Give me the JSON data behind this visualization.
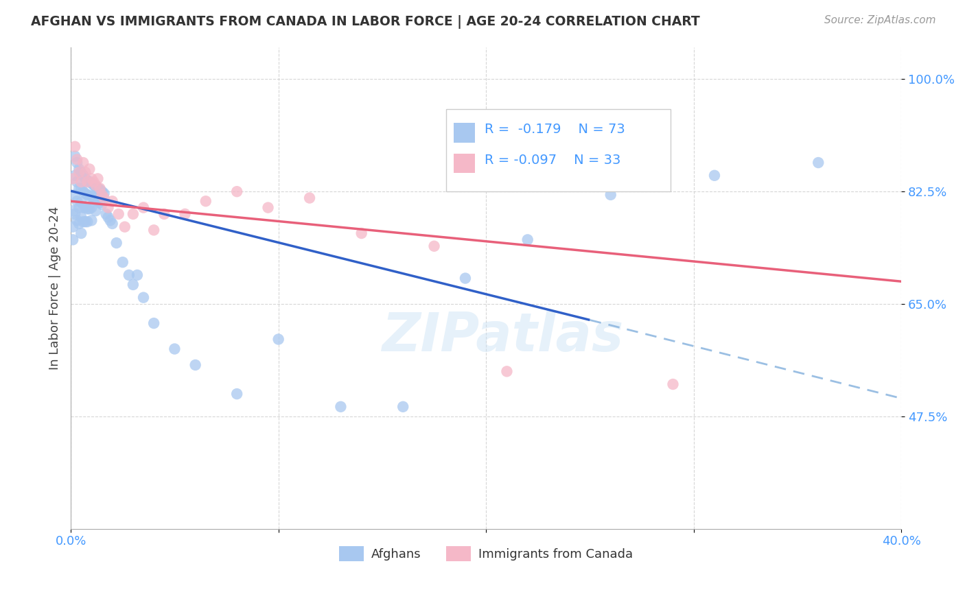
{
  "title": "AFGHAN VS IMMIGRANTS FROM CANADA IN LABOR FORCE | AGE 20-24 CORRELATION CHART",
  "source": "Source: ZipAtlas.com",
  "ylabel": "In Labor Force | Age 20-24",
  "xlim": [
    0.0,
    0.4
  ],
  "ylim": [
    0.3,
    1.05
  ],
  "ytick_positions": [
    0.475,
    0.65,
    0.825,
    1.0
  ],
  "ytick_labels": [
    "47.5%",
    "65.0%",
    "82.5%",
    "100.0%"
  ],
  "blue_color": "#A8C8F0",
  "pink_color": "#F5B8C8",
  "line_blue_solid": "#3060C8",
  "line_blue_dash": "#90B8E0",
  "line_pink": "#E8607A",
  "grid_color": "#CCCCCC",
  "bg_color": "#FFFFFF",
  "blue_line_x0": 0.0,
  "blue_line_y0": 0.826,
  "blue_line_x1_solid": 0.25,
  "blue_line_y1_solid": 0.625,
  "blue_line_x1_dash": 0.4,
  "blue_line_y1_dash": 0.503,
  "pink_line_x0": 0.0,
  "pink_line_y0": 0.81,
  "pink_line_x1": 0.4,
  "pink_line_y1": 0.685,
  "blue_scatter_x": [
    0.001,
    0.001,
    0.001,
    0.002,
    0.002,
    0.002,
    0.002,
    0.003,
    0.003,
    0.003,
    0.003,
    0.004,
    0.004,
    0.004,
    0.004,
    0.005,
    0.005,
    0.005,
    0.005,
    0.005,
    0.006,
    0.006,
    0.006,
    0.006,
    0.007,
    0.007,
    0.007,
    0.007,
    0.008,
    0.008,
    0.008,
    0.008,
    0.009,
    0.009,
    0.009,
    0.01,
    0.01,
    0.01,
    0.01,
    0.011,
    0.011,
    0.012,
    0.012,
    0.012,
    0.013,
    0.013,
    0.014,
    0.014,
    0.015,
    0.015,
    0.016,
    0.017,
    0.018,
    0.019,
    0.02,
    0.022,
    0.025,
    0.028,
    0.03,
    0.032,
    0.035,
    0.04,
    0.05,
    0.06,
    0.08,
    0.1,
    0.13,
    0.16,
    0.19,
    0.22,
    0.26,
    0.31,
    0.36
  ],
  "blue_scatter_y": [
    0.795,
    0.77,
    0.75,
    0.88,
    0.85,
    0.82,
    0.79,
    0.87,
    0.84,
    0.81,
    0.78,
    0.86,
    0.83,
    0.8,
    0.775,
    0.855,
    0.83,
    0.808,
    0.785,
    0.76,
    0.85,
    0.825,
    0.8,
    0.778,
    0.845,
    0.822,
    0.8,
    0.778,
    0.842,
    0.82,
    0.798,
    0.778,
    0.84,
    0.818,
    0.798,
    0.838,
    0.818,
    0.8,
    0.78,
    0.835,
    0.815,
    0.832,
    0.812,
    0.795,
    0.83,
    0.81,
    0.828,
    0.808,
    0.825,
    0.805,
    0.822,
    0.79,
    0.785,
    0.78,
    0.775,
    0.745,
    0.715,
    0.695,
    0.68,
    0.695,
    0.66,
    0.62,
    0.58,
    0.555,
    0.51,
    0.595,
    0.49,
    0.49,
    0.69,
    0.75,
    0.82,
    0.85,
    0.87
  ],
  "pink_scatter_x": [
    0.001,
    0.002,
    0.003,
    0.004,
    0.005,
    0.006,
    0.007,
    0.008,
    0.009,
    0.01,
    0.011,
    0.012,
    0.013,
    0.014,
    0.015,
    0.016,
    0.018,
    0.02,
    0.023,
    0.026,
    0.03,
    0.035,
    0.04,
    0.045,
    0.055,
    0.065,
    0.08,
    0.095,
    0.115,
    0.14,
    0.175,
    0.21,
    0.29
  ],
  "pink_scatter_y": [
    0.845,
    0.895,
    0.875,
    0.855,
    0.84,
    0.87,
    0.855,
    0.84,
    0.86,
    0.845,
    0.84,
    0.835,
    0.845,
    0.83,
    0.82,
    0.815,
    0.8,
    0.81,
    0.79,
    0.77,
    0.79,
    0.8,
    0.765,
    0.79,
    0.79,
    0.81,
    0.825,
    0.8,
    0.815,
    0.76,
    0.74,
    0.545,
    0.525
  ]
}
